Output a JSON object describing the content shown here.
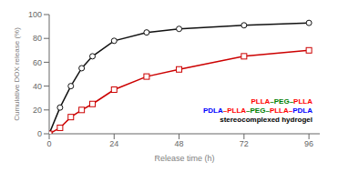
{
  "chart_data": {
    "type": "line",
    "x": [
      0,
      4,
      8,
      12,
      16,
      24,
      36,
      48,
      72,
      96
    ],
    "series": [
      {
        "color": "#111111",
        "marker": "circle",
        "values": [
          0,
          22,
          40,
          55,
          65,
          78,
          85,
          88,
          91,
          93
        ]
      },
      {
        "color": "#cc0000",
        "marker": "square",
        "values": [
          0,
          5,
          14,
          20,
          25,
          37,
          48,
          54,
          65,
          70
        ]
      }
    ],
    "xlim": [
      0,
      100
    ],
    "ylim": [
      0,
      100
    ],
    "xticks": [
      0,
      24,
      48,
      72,
      96
    ],
    "yticks": [
      0,
      20,
      40,
      60,
      80,
      100
    ],
    "xlabel": "Release time (h)",
    "ylabel": "Cumulative DOX release (%)",
    "grid": false,
    "annotations": [
      [
        {
          "text": "PLLA",
          "color": "red"
        },
        {
          "text": "–PEG–",
          "color": "green"
        },
        {
          "text": "PLLA",
          "color": "red"
        }
      ],
      [
        {
          "text": "PDLA",
          "color": "blue"
        },
        {
          "text": "–PLLA",
          "color": "red"
        },
        {
          "text": "–PEG–",
          "color": "green"
        },
        {
          "text": "PLLA–",
          "color": "red"
        },
        {
          "text": "PDLA",
          "color": "blue"
        }
      ],
      [
        {
          "text": "stereocomplexed hydrogel",
          "color": "black"
        }
      ]
    ]
  }
}
